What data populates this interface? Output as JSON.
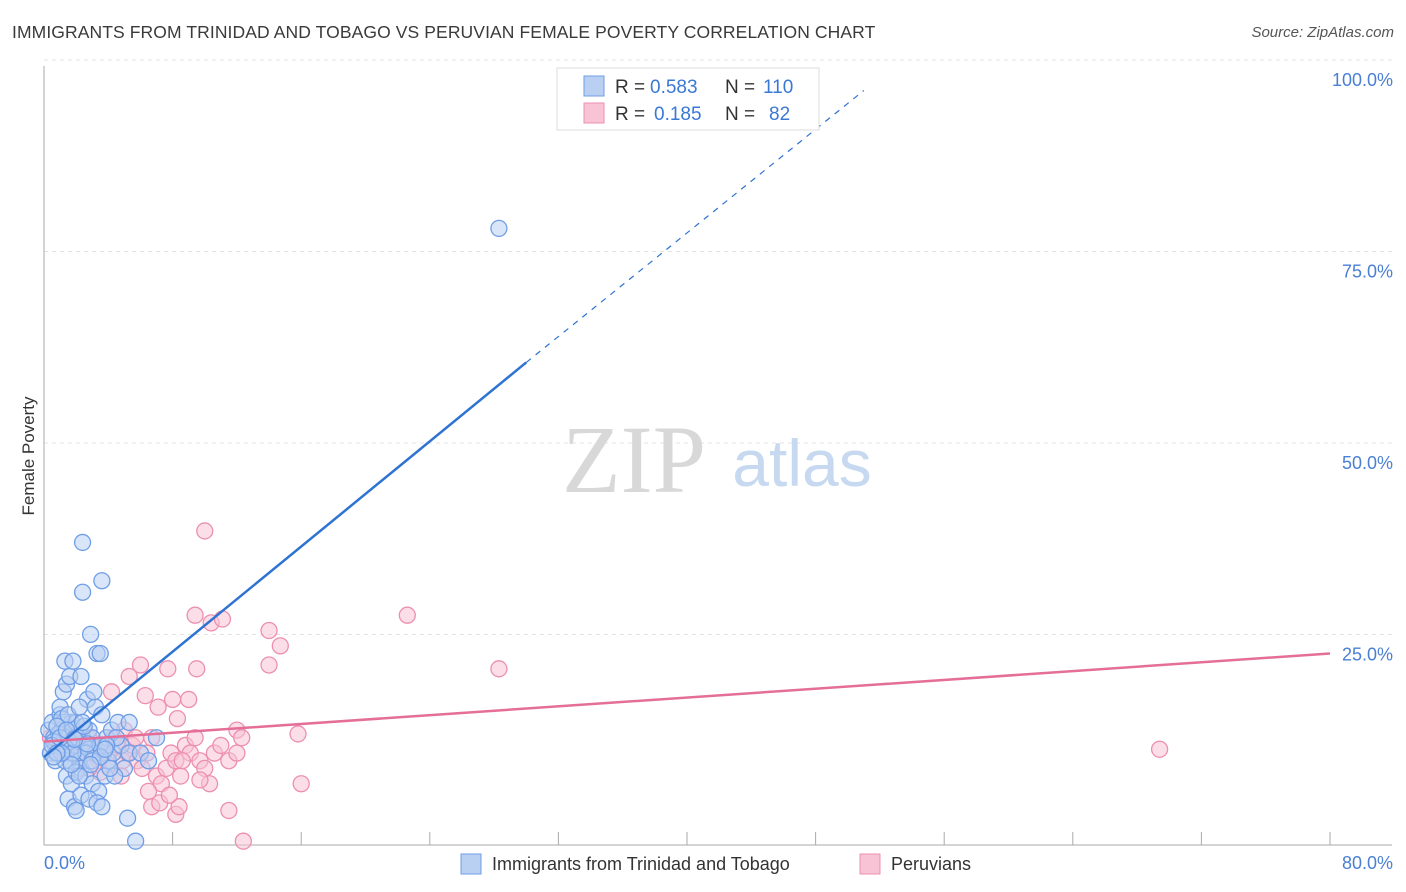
{
  "title": "IMMIGRANTS FROM TRINIDAD AND TOBAGO VS PERUVIAN FEMALE POVERTY CORRELATION CHART",
  "source": "Source: ZipAtlas.com",
  "watermark": {
    "zip": "ZIP",
    "atlas": "atlas"
  },
  "chart_data": {
    "type": "scatter",
    "ylabel": "Female Poverty",
    "xlabel": "",
    "xlim": [
      0,
      80
    ],
    "ylim": [
      0,
      100
    ],
    "x_tick_labels": [
      "0.0%",
      "80.0%"
    ],
    "y_ticks": [
      25,
      50,
      75,
      100
    ],
    "y_tick_labels": [
      "25.0%",
      "50.0%",
      "75.0%",
      "100.0%"
    ],
    "grid": true,
    "legend_position": "top-center",
    "stats": [
      {
        "r_label": "R = ",
        "r": "0.583",
        "n_label": "N = ",
        "n": "110"
      },
      {
        "r_label": "R = ",
        "r": "0.185",
        "n_label": "N = ",
        "n": "82"
      }
    ],
    "series": [
      {
        "name": "Immigrants from Trinidad and Tobago",
        "color": "#6f9ee6",
        "fill": "#b9d0f3",
        "line_color": "#2e73d2",
        "trend": {
          "x0": 0,
          "y0": 11.5,
          "x1": 30,
          "y1": 63.0,
          "dash_x1": 51,
          "dash_y1": 98.5
        },
        "points": [
          [
            0.3,
            15
          ],
          [
            0.5,
            16
          ],
          [
            0.6,
            14
          ],
          [
            0.8,
            13
          ],
          [
            0.9,
            12
          ],
          [
            1.0,
            17
          ],
          [
            1.1,
            15
          ],
          [
            1.2,
            16
          ],
          [
            1.3,
            14
          ],
          [
            1.4,
            12
          ],
          [
            1.5,
            13
          ],
          [
            1.6,
            11
          ],
          [
            1.7,
            16
          ],
          [
            1.8,
            15
          ],
          [
            1.9,
            14
          ],
          [
            2.0,
            13
          ],
          [
            2.1,
            12
          ],
          [
            2.2,
            11
          ],
          [
            2.3,
            10
          ],
          [
            2.4,
            14
          ],
          [
            0.4,
            12
          ],
          [
            0.7,
            11
          ],
          [
            1.0,
            18
          ],
          [
            1.2,
            20
          ],
          [
            1.4,
            21
          ],
          [
            1.6,
            22
          ],
          [
            1.3,
            24
          ],
          [
            1.8,
            24
          ],
          [
            2.3,
            22
          ],
          [
            2.7,
            19
          ],
          [
            3.2,
            18
          ],
          [
            3.6,
            17
          ],
          [
            3.3,
            25
          ],
          [
            3.5,
            25
          ],
          [
            3.1,
            20
          ],
          [
            2.8,
            15
          ],
          [
            3.0,
            14
          ],
          [
            3.4,
            13
          ],
          [
            3.7,
            12
          ],
          [
            3.9,
            14
          ],
          [
            4.2,
            15
          ],
          [
            4.6,
            16
          ],
          [
            2.9,
            27.5
          ],
          [
            2.4,
            33
          ],
          [
            2.4,
            39.5
          ],
          [
            3.6,
            34.5
          ],
          [
            1.4,
            9
          ],
          [
            1.7,
            8
          ],
          [
            2.0,
            9.5
          ],
          [
            2.6,
            9
          ],
          [
            3.0,
            8
          ],
          [
            3.4,
            7
          ],
          [
            3.8,
            9
          ],
          [
            1.5,
            6
          ],
          [
            1.9,
            5
          ],
          [
            2.3,
            6.5
          ],
          [
            2.8,
            6
          ],
          [
            3.3,
            5.5
          ],
          [
            3.6,
            5
          ],
          [
            2.0,
            4.5
          ],
          [
            5.2,
            3.5
          ],
          [
            5.7,
            0.5
          ],
          [
            1.0,
            13
          ],
          [
            1.2,
            12.5
          ],
          [
            1.6,
            13.5
          ],
          [
            2.1,
            14
          ],
          [
            2.5,
            13
          ],
          [
            2.8,
            12.5
          ],
          [
            3.2,
            12
          ],
          [
            3.5,
            13
          ],
          [
            0.9,
            14.5
          ],
          [
            1.1,
            16.5
          ],
          [
            2.0,
            16.0
          ],
          [
            2.5,
            15.5
          ],
          [
            4.0,
            11
          ],
          [
            4.3,
            12
          ],
          [
            4.8,
            13
          ],
          [
            5.3,
            12
          ],
          [
            6.0,
            12
          ],
          [
            6.5,
            11
          ],
          [
            7.0,
            14
          ],
          [
            5.0,
            10
          ],
          [
            4.4,
            9
          ],
          [
            0.6,
            13.5
          ],
          [
            0.8,
            15.5
          ],
          [
            1.5,
            17
          ],
          [
            2.2,
            18
          ],
          [
            2.6,
            12
          ],
          [
            3.0,
            11
          ],
          [
            1.3,
            11
          ],
          [
            4.5,
            14
          ],
          [
            0.5,
            13
          ],
          [
            1.0,
            14
          ],
          [
            1.8,
            12
          ],
          [
            2.4,
            16
          ],
          [
            3.9,
            13
          ],
          [
            4.1,
            10
          ],
          [
            3.5,
            11.5
          ],
          [
            2.9,
            10.5
          ],
          [
            2.2,
            9
          ],
          [
            1.7,
            10.5
          ],
          [
            1.1,
            12
          ],
          [
            0.8,
            12
          ],
          [
            0.6,
            11.5
          ],
          [
            1.4,
            15
          ],
          [
            28.3,
            80.5
          ],
          [
            5.3,
            16
          ],
          [
            3.8,
            12.5
          ],
          [
            2.7,
            13.2
          ],
          [
            1.9,
            13.8
          ]
        ]
      },
      {
        "name": "Peruvians",
        "color": "#ec8fb0",
        "fill": "#f8c3d5",
        "line_color": "#e46e98",
        "trend": {
          "x0": 0,
          "y0": 13.5,
          "x1": 80,
          "y1": 25.0
        },
        "points": [
          [
            0.4,
            14
          ],
          [
            0.7,
            13
          ],
          [
            1.0,
            12
          ],
          [
            1.3,
            15
          ],
          [
            1.6,
            13
          ],
          [
            1.9,
            12
          ],
          [
            2.2,
            11
          ],
          [
            2.5,
            13
          ],
          [
            2.8,
            14
          ],
          [
            3.1,
            12
          ],
          [
            3.4,
            11
          ],
          [
            3.7,
            13
          ],
          [
            4.0,
            12
          ],
          [
            4.3,
            14
          ],
          [
            4.6,
            13
          ],
          [
            4.9,
            11
          ],
          [
            5.2,
            12
          ],
          [
            5.5,
            13
          ],
          [
            5.8,
            11
          ],
          [
            6.1,
            10
          ],
          [
            6.4,
            12
          ],
          [
            6.7,
            14
          ],
          [
            7.0,
            9
          ],
          [
            7.3,
            8
          ],
          [
            7.6,
            10
          ],
          [
            7.9,
            12
          ],
          [
            8.2,
            11
          ],
          [
            8.5,
            9
          ],
          [
            8.8,
            13
          ],
          [
            9.1,
            12
          ],
          [
            9.4,
            14
          ],
          [
            9.7,
            11
          ],
          [
            10.0,
            10
          ],
          [
            10.3,
            8
          ],
          [
            10.6,
            12
          ],
          [
            11.0,
            13
          ],
          [
            11.5,
            11
          ],
          [
            12.0,
            15
          ],
          [
            12.3,
            14
          ],
          [
            4.2,
            20
          ],
          [
            5.3,
            22
          ],
          [
            6.3,
            19.5
          ],
          [
            6.0,
            23.5
          ],
          [
            7.7,
            23
          ],
          [
            8.0,
            19
          ],
          [
            9.0,
            19
          ],
          [
            8.3,
            16.5
          ],
          [
            7.1,
            18
          ],
          [
            9.5,
            23
          ],
          [
            9.4,
            30
          ],
          [
            10.4,
            29
          ],
          [
            11.1,
            29.5
          ],
          [
            10.0,
            41
          ],
          [
            14.0,
            23.5
          ],
          [
            14.0,
            28
          ],
          [
            14.7,
            26
          ],
          [
            15.8,
            14.5
          ],
          [
            16.0,
            8
          ],
          [
            22.6,
            30
          ],
          [
            28.3,
            23
          ],
          [
            69.4,
            12.5
          ],
          [
            6.7,
            5
          ],
          [
            7.2,
            5.5
          ],
          [
            8.2,
            4
          ],
          [
            8.4,
            5
          ],
          [
            11.5,
            4.5
          ],
          [
            12.4,
            0.5
          ],
          [
            7.8,
            6.5
          ],
          [
            9.7,
            8.5
          ],
          [
            6.5,
            7
          ],
          [
            4.8,
            9
          ],
          [
            4.0,
            10.5
          ],
          [
            3.5,
            9.5
          ],
          [
            2.8,
            10
          ],
          [
            2.2,
            11.5
          ],
          [
            1.4,
            12.5
          ],
          [
            0.9,
            13.5
          ],
          [
            3.0,
            13
          ],
          [
            5.0,
            15
          ],
          [
            8.6,
            11
          ],
          [
            12.0,
            12
          ],
          [
            5.7,
            14
          ]
        ]
      }
    ]
  }
}
